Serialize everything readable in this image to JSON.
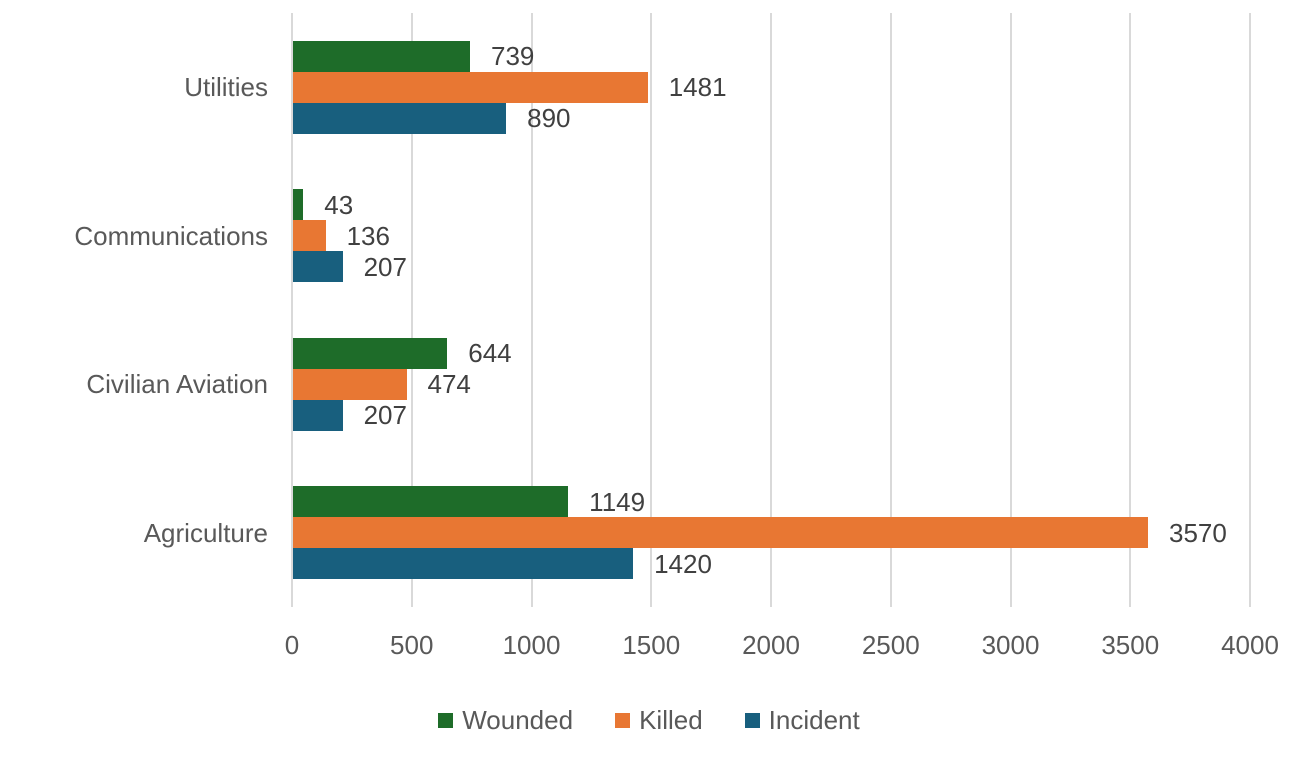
{
  "chart_data": {
    "type": "bar",
    "orientation": "horizontal",
    "title": "",
    "xlabel": "",
    "ylabel": "",
    "categories": [
      "Utilities",
      "Communications",
      "Civilian Aviation",
      "Agriculture"
    ],
    "series": [
      {
        "name": "Wounded",
        "color": "#1E6C29",
        "values": [
          739,
          43,
          644,
          1149
        ]
      },
      {
        "name": "Killed",
        "color": "#E87733",
        "values": [
          1481,
          136,
          474,
          3570
        ]
      },
      {
        "name": "Incident",
        "color": "#185F7E",
        "values": [
          890,
          207,
          207,
          1420
        ]
      }
    ],
    "x_axis": {
      "min": 0,
      "max": 4000,
      "tick_step": 500,
      "tick_labels": [
        "0",
        "500",
        "1000",
        "1500",
        "2000",
        "2500",
        "3000",
        "3500",
        "4000"
      ]
    },
    "grid": true,
    "data_labels": true,
    "legend_position": "bottom",
    "colors": {
      "grid": "#D9D9D9",
      "axis_text": "#595959",
      "category_text": "#595959",
      "data_label_text": "#404040",
      "legend_text": "#595959",
      "background": "#FFFFFF"
    }
  }
}
